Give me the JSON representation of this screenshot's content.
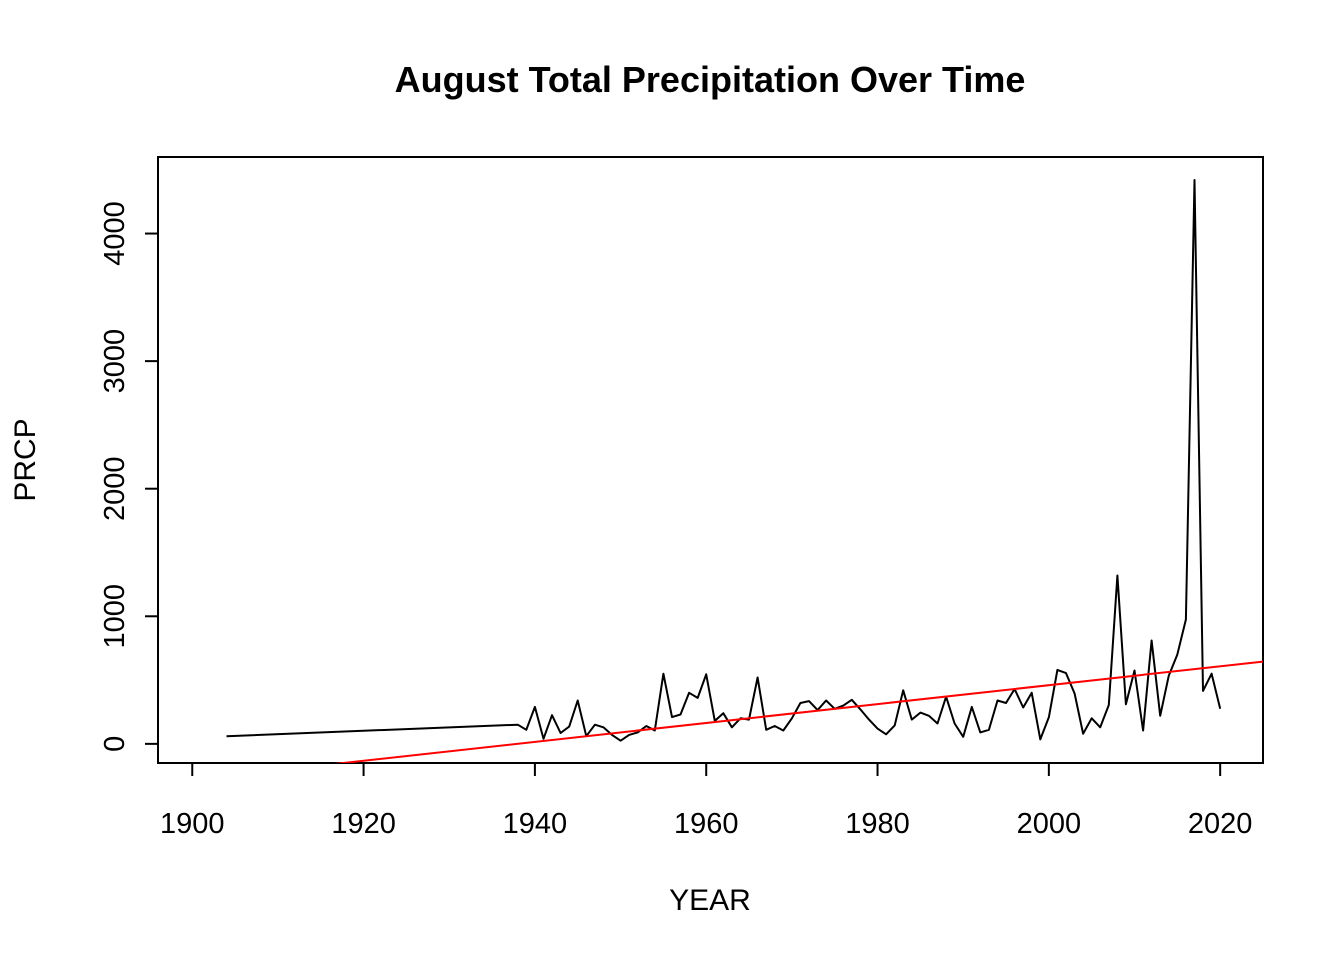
{
  "chart_data": {
    "type": "line",
    "title": "August Total Precipitation Over Time",
    "xlabel": "YEAR",
    "ylabel": "PRCP",
    "xlim": [
      1896,
      2025
    ],
    "ylim": [
      -150,
      4600
    ],
    "xticks": [
      1900,
      1920,
      1940,
      1960,
      1980,
      2000,
      2020
    ],
    "yticks": [
      0,
      1000,
      2000,
      3000,
      4000
    ],
    "grid": false,
    "legend": "none",
    "series": [
      {
        "color": "#000000",
        "x": [
          1904,
          1938,
          1939,
          1940,
          1941,
          1942,
          1943,
          1944,
          1945,
          1946,
          1947,
          1948,
          1949,
          1950,
          1951,
          1952,
          1953,
          1954,
          1955,
          1956,
          1957,
          1958,
          1959,
          1960,
          1961,
          1962,
          1963,
          1964,
          1965,
          1966,
          1967,
          1968,
          1969,
          1970,
          1971,
          1972,
          1973,
          1974,
          1975,
          1976,
          1977,
          1978,
          1979,
          1980,
          1981,
          1982,
          1983,
          1984,
          1985,
          1986,
          1987,
          1988,
          1989,
          1990,
          1991,
          1992,
          1993,
          1994,
          1995,
          1996,
          1997,
          1998,
          1999,
          2000,
          2001,
          2002,
          2003,
          2004,
          2005,
          2006,
          2007,
          2008,
          2009,
          2010,
          2011,
          2012,
          2013,
          2014,
          2015,
          2016,
          2017,
          2018,
          2019,
          2020
        ],
        "y": [
          60,
          150,
          110,
          290,
          40,
          225,
          85,
          135,
          340,
          60,
          150,
          130,
          70,
          25,
          70,
          90,
          140,
          105,
          550,
          210,
          230,
          400,
          360,
          545,
          180,
          240,
          130,
          200,
          190,
          520,
          110,
          140,
          105,
          200,
          320,
          335,
          265,
          340,
          275,
          300,
          345,
          270,
          190,
          120,
          75,
          145,
          420,
          190,
          245,
          220,
          160,
          370,
          160,
          55,
          290,
          90,
          110,
          340,
          320,
          430,
          285,
          400,
          35,
          210,
          580,
          555,
          395,
          80,
          200,
          130,
          305,
          1320,
          310,
          575,
          105,
          810,
          220,
          535,
          700,
          975,
          4420,
          415,
          550,
          275
        ]
      },
      {
        "color": "#ff0000",
        "type": "trend",
        "x": [
          1896,
          2025
        ],
        "y": [
          -310,
          645
        ]
      }
    ]
  }
}
